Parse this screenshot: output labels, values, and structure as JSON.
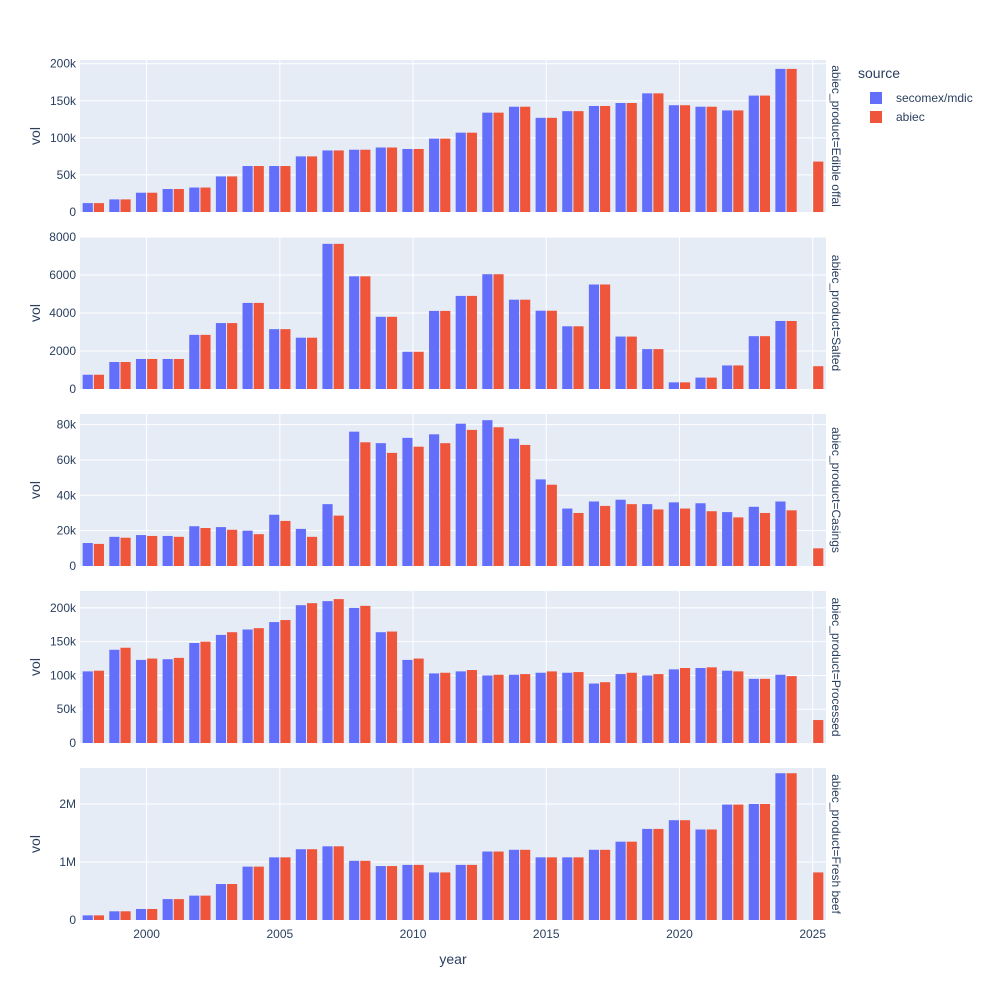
{
  "chart_data": {
    "type": "bar",
    "barmode": "group",
    "xlabel": "year",
    "ylabel": "vol",
    "x": [
      1998,
      1999,
      2000,
      2001,
      2002,
      2003,
      2004,
      2005,
      2006,
      2007,
      2008,
      2009,
      2010,
      2011,
      2012,
      2013,
      2014,
      2015,
      2016,
      2017,
      2018,
      2019,
      2020,
      2021,
      2022,
      2023,
      2024,
      2025
    ],
    "x_ticks": [
      2000,
      2005,
      2010,
      2015,
      2020,
      2025
    ],
    "x_range": [
      1997.5,
      2025.5
    ],
    "grid": true,
    "legend": {
      "title": "source",
      "position": "top-right",
      "entries": [
        {
          "name": "secomex/mdic",
          "color": "#636efa"
        },
        {
          "name": "abiec",
          "color": "#ef553b"
        }
      ]
    },
    "facets": [
      {
        "label": "abiec_product=Edible offal",
        "ylim": [
          0,
          205000
        ],
        "y_ticks": [
          0,
          50000,
          100000,
          150000,
          200000
        ],
        "y_tick_labels": [
          "0",
          "50k",
          "100k",
          "150k",
          "200k"
        ],
        "series": [
          {
            "name": "secomex/mdic",
            "values": [
              12000,
              17000,
              26000,
              31000,
              33000,
              48000,
              62000,
              62000,
              75000,
              83000,
              84000,
              87000,
              85000,
              99000,
              107000,
              134000,
              142000,
              127000,
              136000,
              143000,
              147000,
              160000,
              144000,
              142000,
              137000,
              157000,
              193000,
              null
            ]
          },
          {
            "name": "abiec",
            "values": [
              12000,
              17000,
              26000,
              31000,
              33000,
              48000,
              62000,
              62000,
              75000,
              83000,
              84000,
              87000,
              85000,
              99000,
              107000,
              134000,
              142000,
              127000,
              136000,
              143000,
              147000,
              160000,
              144000,
              142000,
              137000,
              157000,
              193000,
              68000
            ]
          }
        ]
      },
      {
        "label": "abiec_product=Salted",
        "ylim": [
          0,
          8000
        ],
        "y_ticks": [
          0,
          2000,
          4000,
          6000,
          8000
        ],
        "y_tick_labels": [
          "0",
          "2000",
          "4000",
          "6000",
          "8000"
        ],
        "series": [
          {
            "name": "secomex/mdic",
            "values": [
              750,
              1420,
              1580,
              1580,
              2850,
              3470,
              4530,
              3150,
              2700,
              7640,
              5930,
              3800,
              1960,
              4110,
              4900,
              6040,
              4700,
              4120,
              3300,
              5500,
              2760,
              2100,
              350,
              600,
              1240,
              2780,
              3580,
              null
            ]
          },
          {
            "name": "abiec",
            "values": [
              750,
              1420,
              1580,
              1580,
              2850,
              3470,
              4530,
              3150,
              2700,
              7640,
              5930,
              3800,
              1960,
              4110,
              4900,
              6040,
              4700,
              4120,
              3300,
              5500,
              2760,
              2100,
              350,
              600,
              1240,
              2780,
              3580,
              1200
            ]
          }
        ]
      },
      {
        "label": "abiec_product=Casings",
        "ylim": [
          0,
          86000
        ],
        "y_ticks": [
          0,
          20000,
          40000,
          60000,
          80000
        ],
        "y_tick_labels": [
          "0",
          "20k",
          "40k",
          "60k",
          "80k"
        ],
        "series": [
          {
            "name": "secomex/mdic",
            "values": [
              13000,
              16500,
              17500,
              17000,
              22500,
              22000,
              20000,
              29000,
              21000,
              35000,
              76000,
              69500,
              72500,
              74500,
              80500,
              82500,
              72000,
              49000,
              32500,
              36500,
              37500,
              35000,
              36000,
              35500,
              30500,
              33500,
              36500,
              null
            ]
          },
          {
            "name": "abiec",
            "values": [
              12500,
              16000,
              17000,
              16500,
              21500,
              20500,
              18000,
              25500,
              16500,
              28500,
              70000,
              64000,
              67500,
              69500,
              77000,
              78500,
              68500,
              46000,
              30000,
              34000,
              35000,
              32000,
              32500,
              31000,
              27500,
              30000,
              31500,
              10000
            ]
          }
        ]
      },
      {
        "label": "abiec_product=Processed",
        "ylim": [
          0,
          225000
        ],
        "y_ticks": [
          0,
          50000,
          100000,
          150000,
          200000
        ],
        "y_tick_labels": [
          "0",
          "50k",
          "100k",
          "150k",
          "200k"
        ],
        "series": [
          {
            "name": "secomex/mdic",
            "values": [
              106000,
              138000,
              123000,
              124000,
              148000,
              160000,
              168000,
              179000,
              204000,
              210000,
              200000,
              164000,
              123000,
              103000,
              106000,
              100000,
              101000,
              104000,
              104000,
              88000,
              102000,
              100000,
              109000,
              111000,
              107000,
              95000,
              101000,
              null
            ]
          },
          {
            "name": "abiec",
            "values": [
              107000,
              141000,
              125000,
              126000,
              150000,
              164000,
              170000,
              182000,
              207000,
              213000,
              203000,
              165000,
              125000,
              104000,
              108000,
              101000,
              102000,
              106000,
              105000,
              90000,
              104000,
              102000,
              111000,
              112000,
              106000,
              95000,
              99000,
              34000
            ]
          }
        ]
      },
      {
        "label": "abiec_product=Fresh beef",
        "ylim": [
          0,
          2620000
        ],
        "y_ticks": [
          0,
          1000000,
          2000000
        ],
        "y_tick_labels": [
          "0",
          "1M",
          "2M"
        ],
        "series": [
          {
            "name": "secomex/mdic",
            "values": [
              80000,
              150000,
              190000,
              360000,
              420000,
              620000,
              920000,
              1080000,
              1220000,
              1270000,
              1020000,
              930000,
              950000,
              820000,
              950000,
              1180000,
              1210000,
              1080000,
              1080000,
              1210000,
              1350000,
              1570000,
              1720000,
              1560000,
              1990000,
              2000000,
              2530000,
              null
            ]
          },
          {
            "name": "abiec",
            "values": [
              80000,
              150000,
              190000,
              360000,
              420000,
              620000,
              920000,
              1080000,
              1220000,
              1270000,
              1020000,
              930000,
              950000,
              820000,
              950000,
              1180000,
              1210000,
              1080000,
              1080000,
              1210000,
              1350000,
              1570000,
              1720000,
              1560000,
              1990000,
              2000000,
              2530000,
              820000
            ]
          }
        ]
      }
    ]
  }
}
